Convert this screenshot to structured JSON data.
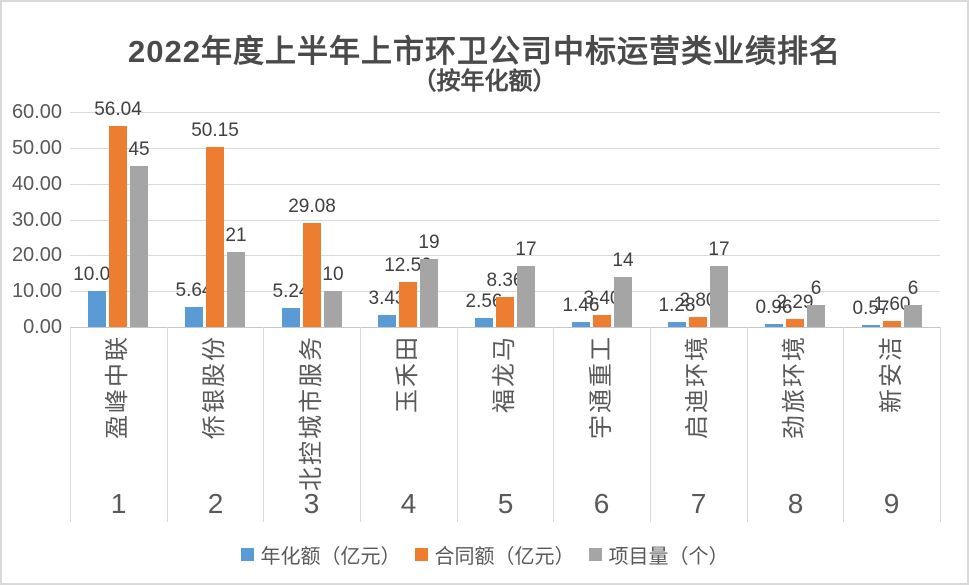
{
  "colors": {
    "series_blue": "#5B9BD5",
    "series_orange": "#ED7D31",
    "series_gray": "#A5A5A5",
    "gridline": "#D9D9D9",
    "axis_line": "#C6C6C6",
    "title_text": "#4A4A4A",
    "axis_text": "#595959",
    "data_label_text": "#404040"
  },
  "chart_data": {
    "type": "bar",
    "title": "2022年度上半年上市环卫公司中标运营类业绩排名",
    "subtitle": "（按年化额）",
    "categories": [
      "盈峰中联",
      "侨银股份",
      "北控城市服务",
      "玉禾田",
      "福龙马",
      "宇通重工",
      "启迪环境",
      "劲旅环境",
      "新安洁"
    ],
    "ranks": [
      "1",
      "2",
      "3",
      "4",
      "5",
      "6",
      "7",
      "8",
      "9"
    ],
    "series": [
      {
        "name": "年化额（亿元）",
        "color": "#5B9BD5",
        "values": [
          10.0,
          5.64,
          5.24,
          3.43,
          2.56,
          1.46,
          1.28,
          0.96,
          0.57
        ],
        "labels": [
          "10.00",
          "5.64",
          "5.24",
          "3.43",
          "2.56",
          "1.46",
          "1.28",
          "0.96",
          "0.57"
        ]
      },
      {
        "name": "合同额（亿元）",
        "color": "#ED7D31",
        "values": [
          56.04,
          50.15,
          29.08,
          12.5,
          8.36,
          3.4,
          2.8,
          2.29,
          1.6
        ],
        "labels": [
          "56.04",
          "50.15",
          "29.08",
          "12.50",
          "8.36",
          "3.40",
          "2.80",
          "2.29",
          "1.60"
        ]
      },
      {
        "name": "项目量（个）",
        "color": "#A5A5A5",
        "values": [
          45,
          21,
          10,
          19,
          17,
          14,
          17,
          6,
          6
        ],
        "labels": [
          "45",
          "21",
          "10",
          "19",
          "17",
          "14",
          "17",
          "6",
          "6"
        ]
      }
    ],
    "y_axis": {
      "min": 0,
      "max": 60,
      "step": 10,
      "tick_labels": [
        "0.00",
        "10.00",
        "20.00",
        "30.00",
        "40.00",
        "50.00",
        "60.00"
      ]
    },
    "grid": true,
    "legend_position": "bottom"
  }
}
